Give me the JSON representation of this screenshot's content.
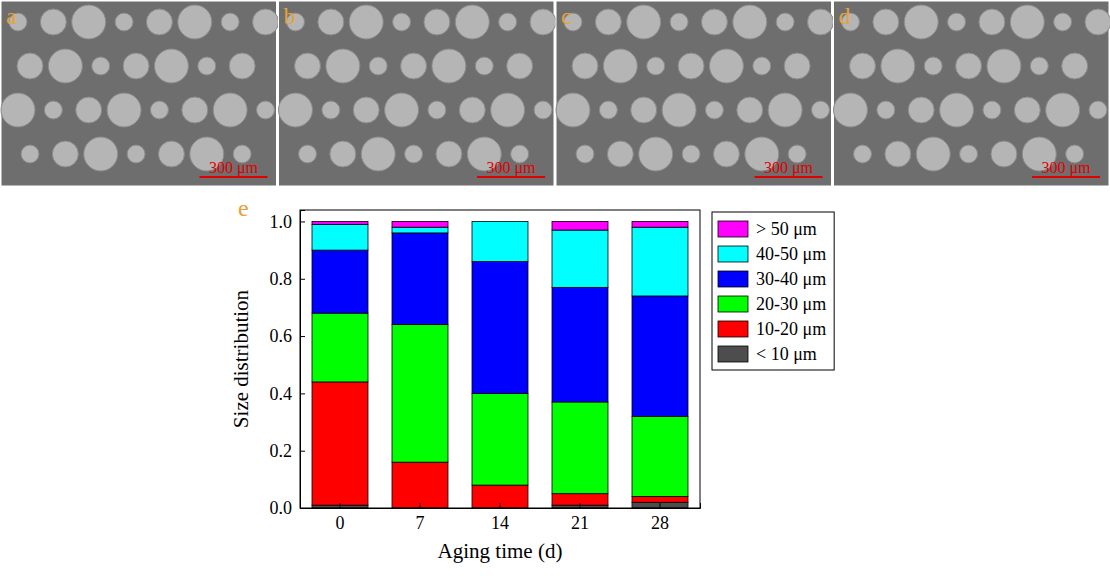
{
  "panels": [
    {
      "label": "a",
      "scale_bar": "300 μm"
    },
    {
      "label": "b",
      "scale_bar": "300 μm"
    },
    {
      "label": "c",
      "scale_bar": "300 μm"
    },
    {
      "label": "d",
      "scale_bar": "300 μm"
    }
  ],
  "chart_data": {
    "type": "bar",
    "stacked": true,
    "annotations": [
      {
        "text": "e"
      }
    ],
    "x_label": "Aging time (d)",
    "y_label": "Size distribution",
    "categories": [
      "0",
      "7",
      "14",
      "21",
      "28"
    ],
    "series": [
      {
        "name": "< 10 μm",
        "color": "#4d4d4d",
        "values": [
          0.01,
          0,
          0,
          0.01,
          0.02
        ]
      },
      {
        "name": "10-20 μm",
        "color": "#ff0000",
        "values": [
          0.43,
          0.16,
          0.08,
          0.04,
          0.02
        ]
      },
      {
        "name": "20-30 μm",
        "color": "#00ff00",
        "values": [
          0.24,
          0.48,
          0.32,
          0.32,
          0.28
        ]
      },
      {
        "name": "30-40 μm",
        "color": "#0000ff",
        "values": [
          0.22,
          0.32,
          0.46,
          0.4,
          0.42
        ]
      },
      {
        "name": "40-50 μm",
        "color": "#00ffff",
        "values": [
          0.09,
          0.02,
          0.14,
          0.2,
          0.24
        ]
      },
      {
        "name": "> 50 μm",
        "color": "#ff00ff",
        "values": [
          0.01,
          0.02,
          0,
          0.03,
          0.02
        ]
      }
    ],
    "ylim": [
      0,
      1.04
    ],
    "yticks": [
      {
        "value": 0,
        "label": "0.0"
      },
      0.2,
      0.4,
      0.6,
      0.8,
      {
        "value": 1,
        "label": "1.0"
      }
    ],
    "legend": "right"
  }
}
